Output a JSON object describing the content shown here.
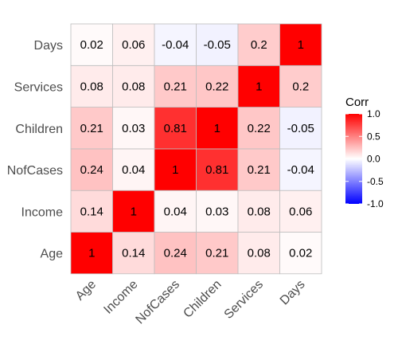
{
  "chart_data": {
    "type": "heatmap",
    "x_categories": [
      "Age",
      "Income",
      "NofCases",
      "Children",
      "Services",
      "Days"
    ],
    "y_categories": [
      "Age",
      "Income",
      "NofCases",
      "Children",
      "Services",
      "Days"
    ],
    "matrix": [
      [
        1,
        0.14,
        0.24,
        0.21,
        0.08,
        0.02
      ],
      [
        0.14,
        1,
        0.04,
        0.03,
        0.08,
        0.06
      ],
      [
        0.24,
        0.04,
        1,
        0.81,
        0.21,
        -0.04
      ],
      [
        0.21,
        0.03,
        0.81,
        1,
        0.22,
        -0.05
      ],
      [
        0.08,
        0.08,
        0.21,
        0.22,
        1,
        0.2
      ],
      [
        0.02,
        0.06,
        -0.04,
        -0.05,
        0.2,
        1
      ]
    ],
    "value_range": [
      -1,
      1
    ],
    "legend": {
      "title": "Corr",
      "ticks": [
        "1.0",
        "0.5",
        "0.0",
        "-0.5",
        "-1.0"
      ],
      "tick_values": [
        1,
        0.5,
        0,
        -0.5,
        -1
      ],
      "placement": "right"
    },
    "colors": {
      "low": "#0000ff",
      "mid": "#ffffff",
      "high": "#ff0000"
    },
    "grid": false
  }
}
